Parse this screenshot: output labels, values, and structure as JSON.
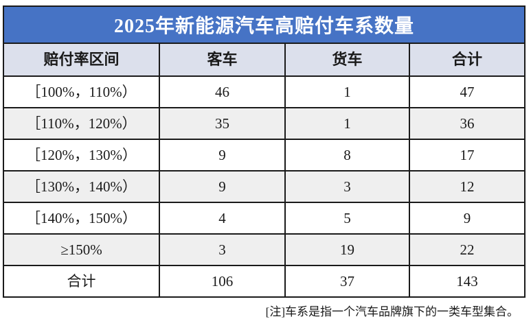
{
  "colors": {
    "title_bg": "#4673c5",
    "title_text": "#ffffff",
    "header_bg": "#dce0ec",
    "row_bg": "#ffffff",
    "row_alt_bg": "#efefef",
    "border": "#1a1a1a",
    "text": "#1a1a1a"
  },
  "chart_data": {
    "type": "table",
    "title": "2025年新能源汽车高赔付车系数量",
    "columns": [
      "赔付率区间",
      "客车",
      "货车",
      "合计"
    ],
    "rows": [
      [
        "［100%，110%）",
        46,
        1,
        47
      ],
      [
        "［110%，120%）",
        35,
        1,
        36
      ],
      [
        "［120%，130%）",
        9,
        8,
        17
      ],
      [
        "［130%，140%）",
        9,
        3,
        12
      ],
      [
        "［140%，150%）",
        4,
        5,
        9
      ],
      [
        "≥150%",
        3,
        19,
        22
      ],
      [
        "合计",
        106,
        37,
        143
      ]
    ],
    "note": "[注]车系是指一个汽车品牌旗下的一类车型集合。",
    "layout_hints": {
      "title_row": "blue banner spanning all columns",
      "zebra_striping": "white / light-gray alternating data rows",
      "grid": "on",
      "note_position": "bottom-right, outside table border"
    }
  }
}
